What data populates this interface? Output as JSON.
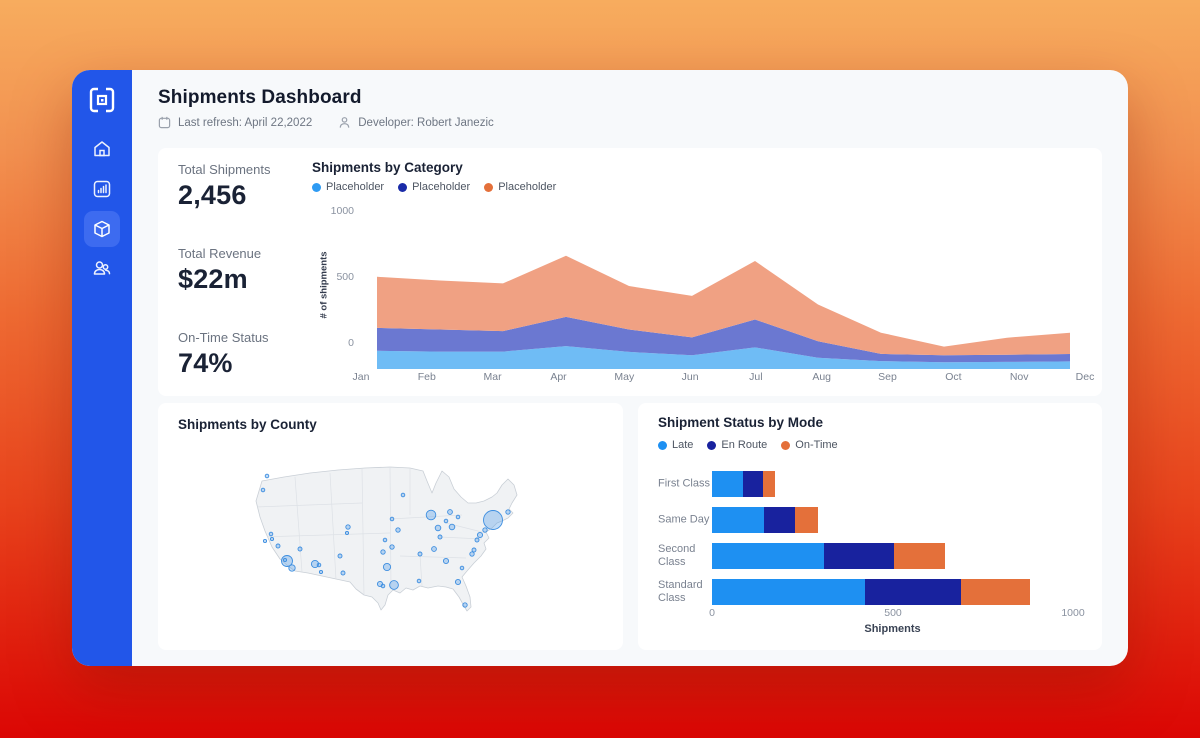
{
  "header": {
    "title": "Shipments Dashboard",
    "last_refresh": "Last refresh: April 22,2022",
    "developer": "Developer: Robert Janezic"
  },
  "sidebar": {
    "color": "#2256E9",
    "active_color": "#3D6BF0",
    "items": [
      {
        "icon": "home-icon",
        "active": false
      },
      {
        "icon": "analytics-icon",
        "active": false
      },
      {
        "icon": "shipments-cube-icon",
        "active": true
      },
      {
        "icon": "users-icon",
        "active": false
      }
    ]
  },
  "kpis": [
    {
      "label": "Total Shipments",
      "value": "2,456"
    },
    {
      "label": "Total Revenue",
      "value": "$22m"
    },
    {
      "label": "On-Time Status",
      "value": "74%"
    }
  ],
  "chart_data": [
    {
      "type": "area",
      "title": "Shipments by Category",
      "legend": [
        {
          "label": "Placeholder",
          "color": "#2E9BF3"
        },
        {
          "label": "Placeholder",
          "color": "#1A2BA8"
        },
        {
          "label": "Placeholder",
          "color": "#E4703A"
        }
      ],
      "x": [
        "Jan",
        "Feb",
        "Mar",
        "Apr",
        "May",
        "Jun",
        "Jul",
        "Aug",
        "Sep",
        "Oct",
        "Nov",
        "Dec"
      ],
      "ylabel": "# of shipments",
      "yticks": [
        1000,
        500,
        0
      ],
      "ylim": [
        -200,
        1000
      ],
      "baseline": -200,
      "grid": false,
      "series_note": "values are cumulative stacked top boundaries in axis units",
      "series": [
        {
          "name": "layer-bottom",
          "color": "#6FBCF5",
          "top": [
            -62,
            -68,
            -68,
            -26,
            -70,
            -95,
            -36,
            -115,
            -140,
            -148,
            -146,
            -142
          ]
        },
        {
          "name": "layer-middle",
          "color": "#6B78D1",
          "top": [
            112,
            100,
            88,
            196,
            100,
            40,
            176,
            10,
            -85,
            -95,
            -92,
            -86
          ]
        },
        {
          "name": "layer-top",
          "color": "#F0A183",
          "top": [
            500,
            472,
            450,
            660,
            430,
            355,
            620,
            290,
            76,
            -30,
            38,
            76
          ]
        }
      ]
    },
    {
      "type": "bar",
      "orientation": "horizontal",
      "title": "Shipment Status by Mode",
      "categories": [
        "First Class",
        "Same Day",
        "Second Class",
        "Standard Class"
      ],
      "series": [
        {
          "name": "Late",
          "color": "#1E90F2",
          "values": [
            85,
            145,
            310,
            425
          ]
        },
        {
          "name": "En Route",
          "color": "#18229E",
          "values": [
            55,
            85,
            195,
            265
          ]
        },
        {
          "name": "On-Time",
          "color": "#E4703A",
          "values": [
            35,
            65,
            140,
            190
          ]
        }
      ],
      "xlabel": "Shipments",
      "xticks": [
        0,
        500,
        1000
      ],
      "xlim": [
        0,
        1000
      ],
      "legend_position": "top"
    },
    {
      "type": "scatter",
      "subtype": "us-bubble-map",
      "title": "Shipments by County",
      "bubble_fill": "rgba(77,155,232,0.35)",
      "bubble_stroke": "#3D8EE0",
      "points": [
        {
          "x": 17,
          "y": 17,
          "r": 1.8
        },
        {
          "x": 13,
          "y": 31,
          "r": 1.8
        },
        {
          "x": 243,
          "y": 61,
          "r": 9.5
        },
        {
          "x": 235,
          "y": 71,
          "r": 2.2
        },
        {
          "x": 258,
          "y": 53,
          "r": 2.2
        },
        {
          "x": 230,
          "y": 76,
          "r": 2.6
        },
        {
          "x": 227,
          "y": 81,
          "r": 2
        },
        {
          "x": 181,
          "y": 56,
          "r": 4.8
        },
        {
          "x": 153,
          "y": 36,
          "r": 1.8
        },
        {
          "x": 200,
          "y": 53,
          "r": 2.4
        },
        {
          "x": 208,
          "y": 58,
          "r": 1.8
        },
        {
          "x": 188,
          "y": 69,
          "r": 2.8
        },
        {
          "x": 202,
          "y": 68,
          "r": 2.8
        },
        {
          "x": 190,
          "y": 78,
          "r": 2
        },
        {
          "x": 196,
          "y": 62,
          "r": 1.8
        },
        {
          "x": 142,
          "y": 60,
          "r": 1.8
        },
        {
          "x": 148,
          "y": 71,
          "r": 2.2
        },
        {
          "x": 135,
          "y": 81,
          "r": 1.8
        },
        {
          "x": 142,
          "y": 88,
          "r": 2.2
        },
        {
          "x": 133,
          "y": 93,
          "r": 2.2
        },
        {
          "x": 98,
          "y": 68,
          "r": 2.2
        },
        {
          "x": 97,
          "y": 74,
          "r": 1.6
        },
        {
          "x": 90,
          "y": 97,
          "r": 2
        },
        {
          "x": 37,
          "y": 102,
          "r": 5.5
        },
        {
          "x": 35,
          "y": 101,
          "r": 1.6
        },
        {
          "x": 42,
          "y": 109,
          "r": 3.2
        },
        {
          "x": 28,
          "y": 87,
          "r": 2
        },
        {
          "x": 21,
          "y": 75,
          "r": 1.8
        },
        {
          "x": 22,
          "y": 80,
          "r": 1.6
        },
        {
          "x": 15,
          "y": 82,
          "r": 1.6
        },
        {
          "x": 50,
          "y": 90,
          "r": 2
        },
        {
          "x": 65,
          "y": 105,
          "r": 3.6
        },
        {
          "x": 69,
          "y": 106,
          "r": 1.8
        },
        {
          "x": 71,
          "y": 113,
          "r": 1.6
        },
        {
          "x": 93,
          "y": 114,
          "r": 2
        },
        {
          "x": 137,
          "y": 108,
          "r": 3.6
        },
        {
          "x": 130,
          "y": 125,
          "r": 2.6
        },
        {
          "x": 133,
          "y": 127,
          "r": 1.8
        },
        {
          "x": 144,
          "y": 126,
          "r": 4.4
        },
        {
          "x": 170,
          "y": 95,
          "r": 2
        },
        {
          "x": 184,
          "y": 90,
          "r": 2.4
        },
        {
          "x": 196,
          "y": 102,
          "r": 2.6
        },
        {
          "x": 169,
          "y": 122,
          "r": 1.8
        },
        {
          "x": 208,
          "y": 123,
          "r": 2.6
        },
        {
          "x": 215,
          "y": 146,
          "r": 2.2
        },
        {
          "x": 222,
          "y": 95,
          "r": 2.2
        },
        {
          "x": 224,
          "y": 91,
          "r": 2
        },
        {
          "x": 212,
          "y": 109,
          "r": 1.8
        }
      ]
    }
  ]
}
